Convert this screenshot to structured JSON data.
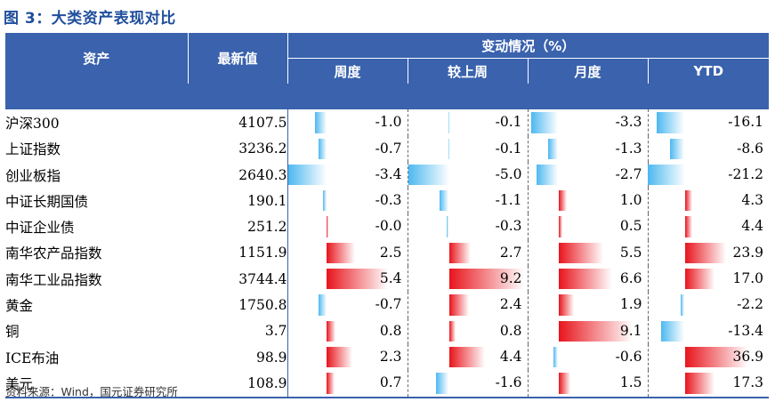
{
  "title": "图 3：大类资产表现对比",
  "headers": {
    "asset": "资产",
    "latest": "最新值",
    "change_group": "变动情况（%）",
    "week": "周度",
    "vs_last_week": "较上周",
    "month": "月度",
    "ytd": "YTD"
  },
  "rows": [
    {
      "name": "沪深300",
      "latest": "4107.5",
      "week": "-1.0",
      "vs_last_week": "-0.1",
      "month": "-3.3",
      "ytd": "-16.1"
    },
    {
      "name": "上证指数",
      "latest": "3236.2",
      "week": "-0.7",
      "vs_last_week": "-0.1",
      "month": "-1.3",
      "ytd": "-8.6"
    },
    {
      "name": "创业板指",
      "latest": "2640.3",
      "week": "-3.4",
      "vs_last_week": "-5.0",
      "month": "-2.7",
      "ytd": "-21.2"
    },
    {
      "name": "中证长期国债",
      "latest": "190.1",
      "week": "-0.3",
      "vs_last_week": "-1.1",
      "month": "1.0",
      "ytd": "4.3"
    },
    {
      "name": "中证企业债",
      "latest": "251.2",
      "week": "-0.0",
      "vs_last_week": "-0.3",
      "month": "0.5",
      "ytd": "4.4"
    },
    {
      "name": "南华农产品指数",
      "latest": "1151.9",
      "week": "2.5",
      "vs_last_week": "2.7",
      "month": "5.5",
      "ytd": "23.9"
    },
    {
      "name": "南华工业品指数",
      "latest": "3744.4",
      "week": "5.4",
      "vs_last_week": "9.2",
      "month": "6.6",
      "ytd": "17.0"
    },
    {
      "name": "黄金",
      "latest": "1750.8",
      "week": "-0.7",
      "vs_last_week": "2.4",
      "month": "1.9",
      "ytd": "-2.2"
    },
    {
      "name": "铜",
      "latest": "3.7",
      "week": "0.8",
      "vs_last_week": "0.8",
      "month": "9.1",
      "ytd": "-13.4"
    },
    {
      "name": "ICE布油",
      "latest": "98.9",
      "week": "2.3",
      "vs_last_week": "4.4",
      "month": "-0.6",
      "ytd": "36.9"
    },
    {
      "name": "美元",
      "latest": "108.9",
      "week": "0.7",
      "vs_last_week": "-1.6",
      "month": "1.5",
      "ytd": "17.3"
    }
  ],
  "colors": {
    "header_bg": "#3a62ad",
    "title": "#1f4e9c",
    "negative": "#4db8f0",
    "positive": "#e8141c"
  },
  "source": "资料来源：Wind，国元证券研究所"
}
